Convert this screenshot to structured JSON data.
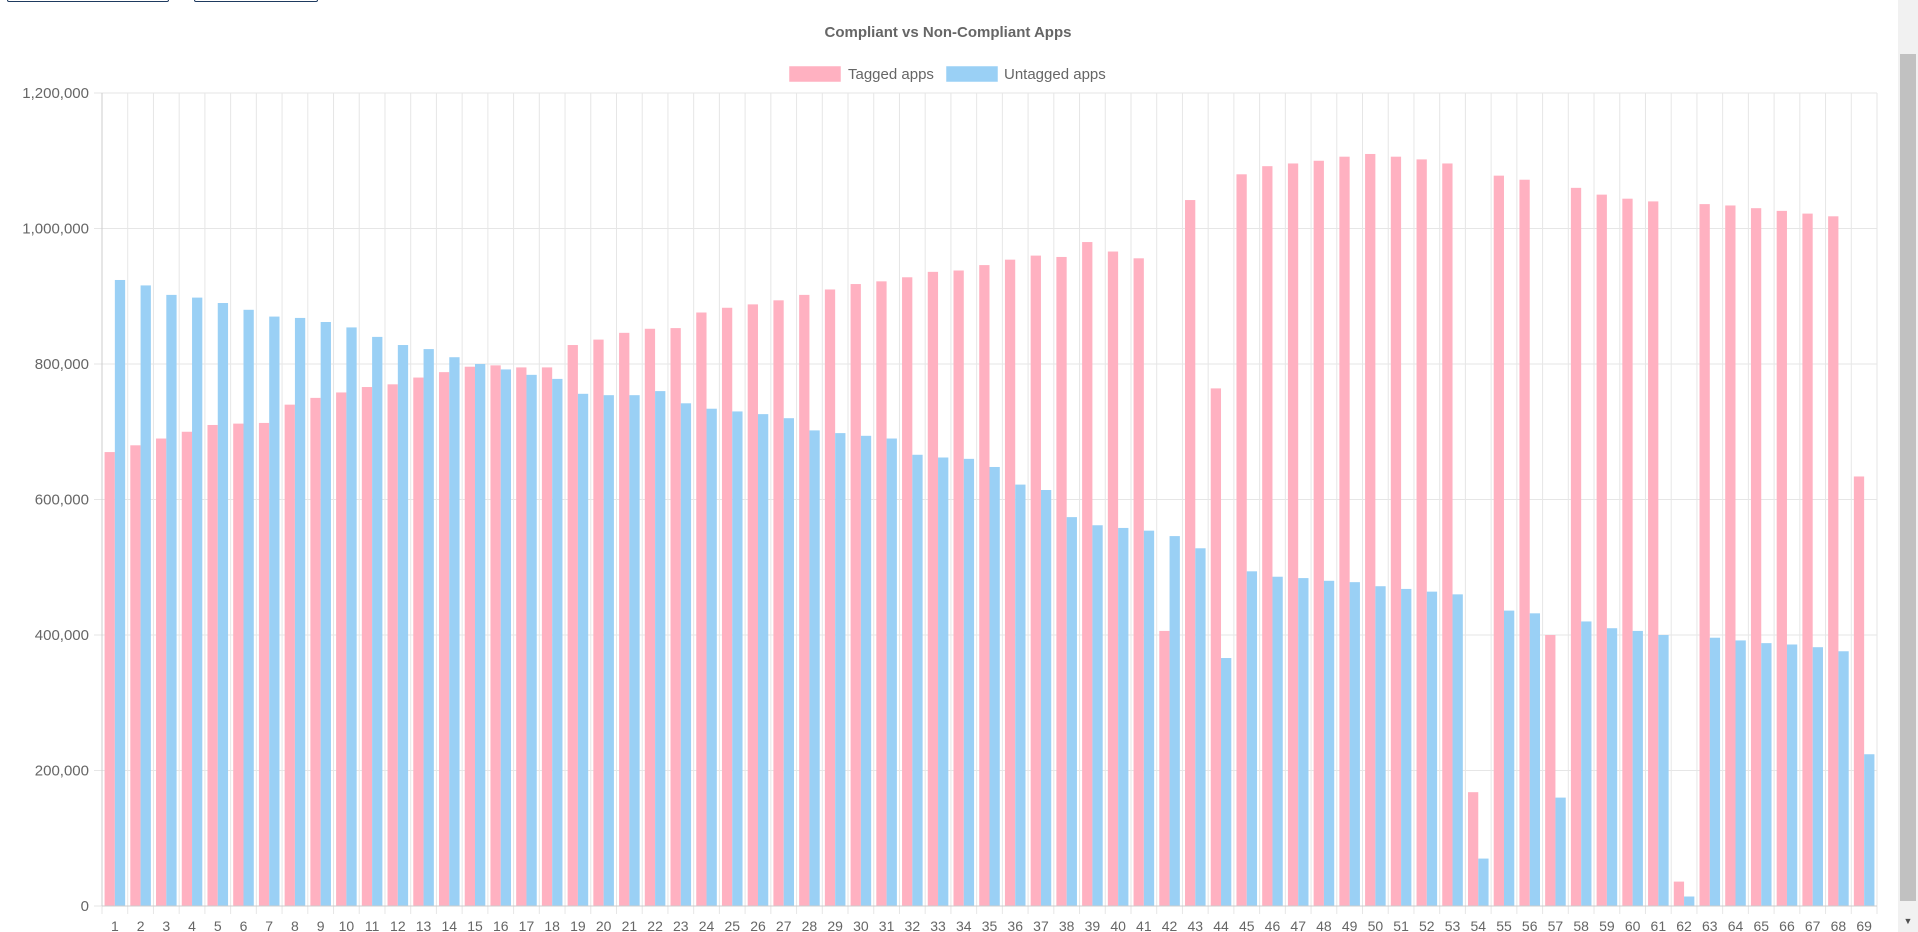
{
  "page": {
    "buttons": [
      {
        "name": "top-button-1",
        "label": ""
      },
      {
        "name": "top-button-2",
        "label": ""
      }
    ]
  },
  "colors": {
    "tagged": "#ffb1c1",
    "untagged": "#9ad0f5",
    "grid": "#e6e6e6",
    "text": "#666666",
    "title": "#666666"
  },
  "scrollbar": {
    "down_icon": "triangle-down-icon"
  },
  "chart_data": {
    "type": "bar",
    "title": "Compliant vs Non-Compliant Apps",
    "xlabel": "",
    "ylabel": "",
    "ylim": [
      0,
      1200000
    ],
    "yticks": [
      0,
      200000,
      400000,
      600000,
      800000,
      1000000,
      1200000
    ],
    "ytick_labels": [
      "0",
      "200,000",
      "400,000",
      "600,000",
      "800,000",
      "1,000,000",
      "1,200,000"
    ],
    "grid": true,
    "legend_position": "top-center",
    "categories": [
      "1",
      "2",
      "3",
      "4",
      "5",
      "6",
      "7",
      "8",
      "9",
      "10",
      "11",
      "12",
      "13",
      "14",
      "15",
      "16",
      "17",
      "18",
      "19",
      "20",
      "21",
      "22",
      "23",
      "24",
      "25",
      "26",
      "27",
      "28",
      "29",
      "30",
      "31",
      "32",
      "33",
      "34",
      "35",
      "36",
      "37",
      "38",
      "39",
      "40",
      "41",
      "42",
      "43",
      "44",
      "45",
      "46",
      "47",
      "48",
      "49",
      "50",
      "51",
      "52",
      "53",
      "54",
      "55",
      "56",
      "57",
      "58",
      "59",
      "60",
      "61",
      "62",
      "63",
      "64",
      "65",
      "66",
      "67",
      "68",
      "69"
    ],
    "series": [
      {
        "name": "Tagged apps",
        "values": [
          670000,
          680000,
          690000,
          700000,
          710000,
          712000,
          713000,
          740000,
          750000,
          758000,
          766000,
          770000,
          780000,
          788000,
          796000,
          798000,
          795000,
          795000,
          828000,
          836000,
          846000,
          852000,
          853000,
          876000,
          883000,
          888000,
          894000,
          902000,
          910000,
          918000,
          922000,
          928000,
          936000,
          938000,
          946000,
          954000,
          960000,
          958000,
          980000,
          966000,
          956000,
          406000,
          1042000,
          764000,
          1080000,
          1092000,
          1096000,
          1100000,
          1106000,
          1110000,
          1106000,
          1102000,
          1096000,
          168000,
          1078000,
          1072000,
          400000,
          1060000,
          1050000,
          1044000,
          1040000,
          36000,
          1036000,
          1034000,
          1030000,
          1026000,
          1022000,
          1018000,
          634000
        ]
      },
      {
        "name": "Untagged apps",
        "values": [
          924000,
          916000,
          902000,
          898000,
          890000,
          880000,
          870000,
          868000,
          862000,
          854000,
          840000,
          828000,
          822000,
          810000,
          800000,
          792000,
          784000,
          778000,
          756000,
          754000,
          754000,
          760000,
          742000,
          734000,
          730000,
          726000,
          720000,
          702000,
          698000,
          694000,
          690000,
          666000,
          662000,
          660000,
          648000,
          622000,
          614000,
          574000,
          562000,
          558000,
          554000,
          546000,
          528000,
          366000,
          494000,
          486000,
          484000,
          480000,
          478000,
          472000,
          468000,
          464000,
          460000,
          70000,
          436000,
          432000,
          160000,
          420000,
          410000,
          406000,
          400000,
          14000,
          396000,
          392000,
          388000,
          386000,
          382000,
          376000,
          224000
        ]
      }
    ]
  }
}
